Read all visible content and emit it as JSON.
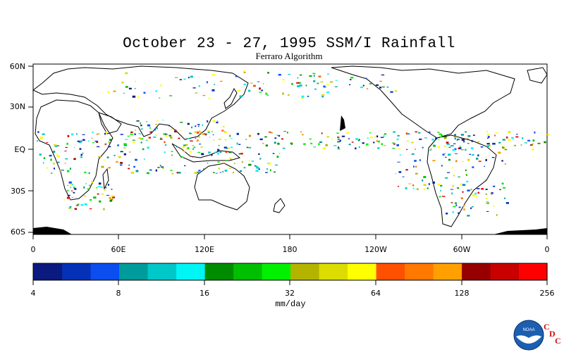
{
  "title": "October 23 - 27, 1995 SSM/I Rainfall",
  "subtitle": "Ferraro Algorithm",
  "lat_labels": [
    "60N",
    "30N",
    "EQ",
    "30S",
    "60S"
  ],
  "lon_labels": [
    "0",
    "60E",
    "120E",
    "180",
    "120W",
    "60W",
    "0"
  ],
  "colorbar": {
    "colors": [
      "#0a1a7e",
      "#0530b8",
      "#0a4ef0",
      "#009b9b",
      "#00c8c8",
      "#00f5f5",
      "#008c00",
      "#00be00",
      "#00f000",
      "#b4b400",
      "#dcdc00",
      "#ffff00",
      "#ff5000",
      "#ff7800",
      "#ffa000",
      "#960000",
      "#c80000",
      "#ff0000"
    ],
    "ticks": [
      "4",
      "8",
      "16",
      "32",
      "64",
      "128",
      "256"
    ],
    "units": "mm/day"
  },
  "logo": {
    "agency": "NOAA",
    "letters": [
      "C",
      "D",
      "C"
    ]
  }
}
